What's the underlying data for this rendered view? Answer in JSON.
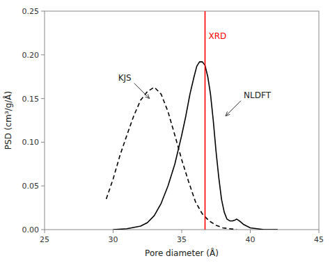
{
  "chart_data": {
    "type": "line",
    "title": "",
    "xlabel": "Pore diameter (Å)",
    "ylabel": "PSD (cm³/g/Å)",
    "xlim": [
      25,
      45
    ],
    "ylim": [
      0.0,
      0.25
    ],
    "xticks": [
      25,
      30,
      35,
      40,
      45
    ],
    "yticks": [
      {
        "value": 0.0,
        "label": "0.00"
      },
      {
        "value": 0.05,
        "label": "0.05"
      },
      {
        "value": 0.1,
        "label": "0.10"
      },
      {
        "value": 0.15,
        "label": "0.15"
      },
      {
        "value": 0.2,
        "label": "0.20"
      },
      {
        "value": 0.25,
        "label": "0.25"
      }
    ],
    "grid": false,
    "series": [
      {
        "name": "KJS",
        "color": "#000000",
        "line_style": "dashed",
        "x": [
          29.5,
          30.0,
          30.5,
          31.0,
          31.5,
          32.0,
          32.5,
          33.0,
          33.5,
          34.0,
          34.5,
          35.0,
          35.5,
          36.0,
          36.5,
          37.0,
          37.5,
          38.0,
          38.5,
          39.0
        ],
        "values": [
          0.035,
          0.058,
          0.085,
          0.108,
          0.13,
          0.148,
          0.158,
          0.163,
          0.155,
          0.135,
          0.108,
          0.08,
          0.055,
          0.032,
          0.018,
          0.01,
          0.005,
          0.002,
          0.001,
          0.0
        ]
      },
      {
        "name": "NLDFT",
        "color": "#000000",
        "line_style": "solid",
        "x": [
          30.0,
          31.0,
          32.0,
          32.5,
          33.0,
          33.5,
          34.0,
          34.5,
          35.0,
          35.3,
          35.6,
          35.9,
          36.1,
          36.3,
          36.5,
          36.7,
          36.9,
          37.1,
          37.3,
          37.5,
          37.7,
          37.9,
          38.1,
          38.3,
          38.5,
          38.7,
          38.9,
          39.0,
          39.2,
          39.5,
          40.0,
          40.5,
          41.0,
          42.0
        ],
        "values": [
          0.0,
          0.001,
          0.004,
          0.008,
          0.016,
          0.03,
          0.05,
          0.075,
          0.108,
          0.13,
          0.155,
          0.175,
          0.187,
          0.192,
          0.192,
          0.188,
          0.175,
          0.155,
          0.125,
          0.09,
          0.06,
          0.035,
          0.02,
          0.012,
          0.01,
          0.01,
          0.011,
          0.012,
          0.01,
          0.006,
          0.002,
          0.001,
          0.0,
          0.0
        ]
      }
    ],
    "reference_lines": [
      {
        "x": 36.7,
        "label": "XRD",
        "color": "#ff0000"
      }
    ],
    "annotations": [
      {
        "text": "KJS",
        "x": 32.65,
        "y": 0.15
      },
      {
        "text": "NLDFT",
        "x": 38.2,
        "y": 0.13
      }
    ]
  }
}
